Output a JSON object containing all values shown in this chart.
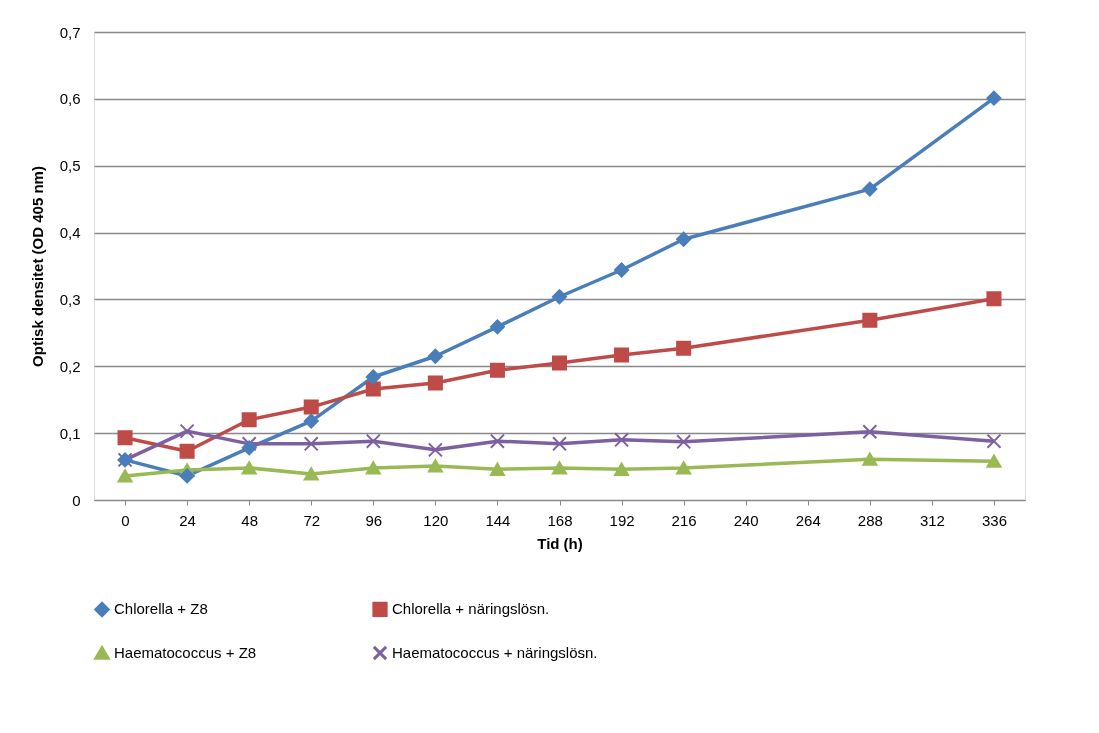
{
  "chart_data": {
    "type": "line",
    "xlabel": "Tid (h)",
    "ylabel": "Optisk densitet (OD 405 nm)",
    "x": [
      0,
      24,
      48,
      72,
      96,
      120,
      144,
      168,
      192,
      216,
      288,
      336
    ],
    "series": [
      {
        "name": "Chlorella + Z8",
        "color": "#4a7ebb",
        "marker": "diamond",
        "values": [
          0.06,
          0.036,
          0.078,
          0.118,
          0.184,
          0.215,
          0.259,
          0.304,
          0.344,
          0.39,
          0.465,
          0.601
        ]
      },
      {
        "name": "Chlorella + näringslösn.",
        "color": "#be4b48",
        "marker": "square",
        "values": [
          0.093,
          0.073,
          0.12,
          0.139,
          0.166,
          0.175,
          0.194,
          0.205,
          0.217,
          0.227,
          0.269,
          0.301
        ]
      },
      {
        "name": "Haematococcus + Z8",
        "color": "#98b954",
        "marker": "triangle",
        "values": [
          0.036,
          0.045,
          0.048,
          0.039,
          0.048,
          0.051,
          0.046,
          0.048,
          0.046,
          0.048,
          0.061,
          0.058
        ]
      },
      {
        "name": "Haematococcus + näringslösn.",
        "color": "#7d60a0",
        "marker": "cross",
        "values": [
          0.06,
          0.103,
          0.084,
          0.084,
          0.088,
          0.075,
          0.088,
          0.084,
          0.09,
          0.087,
          0.102,
          0.088
        ]
      }
    ],
    "xlim": [
      -12,
      348
    ],
    "xticks": [
      0,
      24,
      48,
      72,
      96,
      120,
      144,
      168,
      192,
      216,
      240,
      264,
      288,
      312,
      336
    ],
    "ylim": [
      0,
      0.7
    ],
    "yticks": [
      {
        "value": 0,
        "label": "0"
      },
      {
        "value": 0.1,
        "label": "0,1"
      },
      {
        "value": 0.2,
        "label": "0,2"
      },
      {
        "value": 0.3,
        "label": "0,3"
      },
      {
        "value": 0.4,
        "label": "0,4"
      },
      {
        "value": 0.5,
        "label": "0,5"
      },
      {
        "value": 0.6,
        "label": "0,6"
      },
      {
        "value": 0.7,
        "label": "0,7"
      }
    ],
    "grid": "y",
    "legend": "bottom",
    "line_style": "solid"
  }
}
